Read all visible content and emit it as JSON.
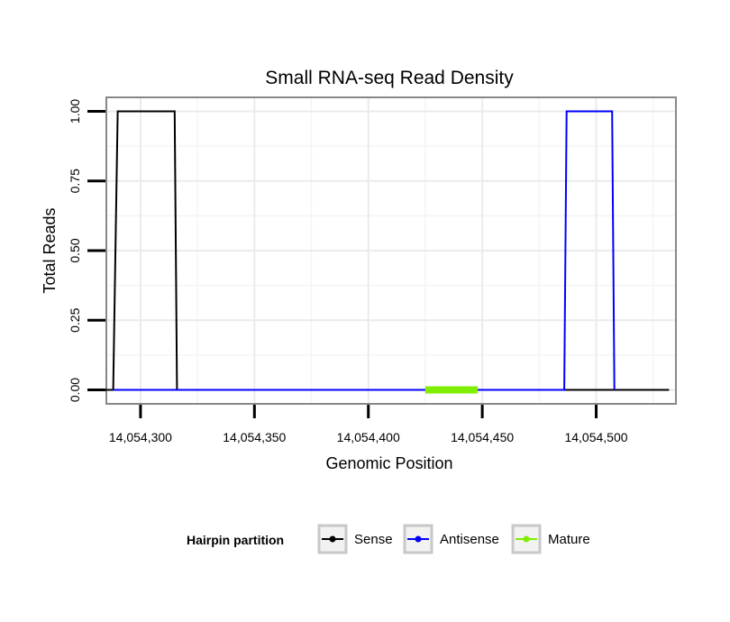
{
  "chart_data": {
    "type": "line",
    "title": "Small RNA-seq Read Density",
    "xlabel": "Genomic Position",
    "ylabel": "Total Reads",
    "xlim": [
      14054285,
      14054535
    ],
    "ylim": [
      -0.05,
      1.05
    ],
    "x_ticks": [
      14054300,
      14054350,
      14054400,
      14054450,
      14054500
    ],
    "x_tick_labels": [
      "14,054,300",
      "14,054,350",
      "14,054,400",
      "14,054,450",
      "14,054,500"
    ],
    "y_ticks": [
      0,
      0.25,
      0.5,
      0.75,
      1.0
    ],
    "y_tick_labels": [
      "0.00",
      "0.25",
      "0.50",
      "0.75",
      "1.00"
    ],
    "grid": true,
    "legend_position": "bottom",
    "legend_title": "Hairpin partition",
    "series": [
      {
        "name": "Sense",
        "color": "#000000",
        "x": [
          14054282,
          14054288,
          14054290,
          14054315,
          14054316,
          14054532
        ],
        "y": [
          0,
          0,
          1,
          1,
          0,
          0
        ]
      },
      {
        "name": "Antisense",
        "color": "#0000ff",
        "x": [
          14054288,
          14054315,
          14054486,
          14054487,
          14054507,
          14054508
        ],
        "y": [
          0,
          0,
          0,
          1,
          1,
          0
        ]
      },
      {
        "name": "Mature",
        "color": "#80ee00",
        "x": [
          14054425,
          14054448
        ],
        "y": [
          0,
          0
        ]
      }
    ]
  }
}
